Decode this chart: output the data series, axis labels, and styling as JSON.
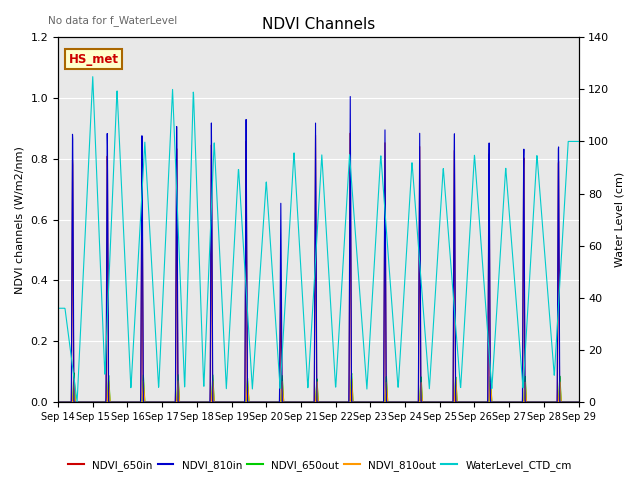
{
  "title": "NDVI Channels",
  "ylabel_left": "NDVI channels (W/m2/nm)",
  "ylabel_right": "Water Level (cm)",
  "no_data_text": "No data for f_WaterLevel",
  "annotation_text": "HS_met",
  "ylim_left": [
    0,
    1.2
  ],
  "ylim_right": [
    0,
    140
  ],
  "yticks_left": [
    0.0,
    0.2,
    0.4,
    0.6,
    0.8,
    1.0,
    1.2
  ],
  "yticks_right": [
    0,
    20,
    40,
    60,
    80,
    100,
    120,
    140
  ],
  "colors": {
    "NDVI_650in": "#cc0000",
    "NDVI_810in": "#0000cc",
    "NDVI_650out": "#00cc00",
    "NDVI_810out": "#ff9900",
    "WaterLevel_CTD_cm": "#00cccc"
  },
  "legend_labels": [
    "NDVI_650in",
    "NDVI_810in",
    "NDVI_650out",
    "NDVI_810out",
    "WaterLevel_CTD_cm"
  ],
  "x_tick_labels": [
    "Sep 14",
    "Sep 15",
    "Sep 16",
    "Sep 17",
    "Sep 18",
    "Sep 19",
    "Sep 20",
    "Sep 21",
    "Sep 22",
    "Sep 23",
    "Sep 24",
    "Sep 25",
    "Sep 26",
    "Sep 27",
    "Sep 28",
    "Sep 29"
  ],
  "plot_bg_color": "#e8e8e8",
  "figsize": [
    6.4,
    4.8
  ],
  "dpi": 100
}
